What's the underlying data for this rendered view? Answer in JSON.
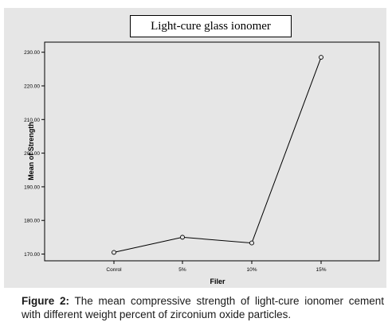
{
  "chart_data": {
    "type": "line",
    "title": "Light-cure glass ionomer",
    "xlabel": "Filer",
    "ylabel": "Mean of Strength",
    "categories": [
      "Conrol",
      "5%",
      "10%",
      "15%"
    ],
    "series": [
      {
        "values": [
          170.5,
          175.0,
          173.3,
          228.5
        ]
      }
    ],
    "ylim": [
      168,
      233
    ],
    "yticks": [
      170,
      180,
      190,
      200,
      210,
      220,
      230
    ],
    "ytick_labels": [
      "170.00",
      "180.00",
      "190.00",
      "200.00",
      "210.00",
      "220.00",
      "230.00"
    ],
    "grid": false,
    "line_color": "#000000",
    "plot_background": "#e6e6e6"
  },
  "caption": {
    "label": "Figure 2:",
    "text": " The mean compressive strength of light-cure ionomer cement with different weight percent of zirconium oxide particles."
  }
}
